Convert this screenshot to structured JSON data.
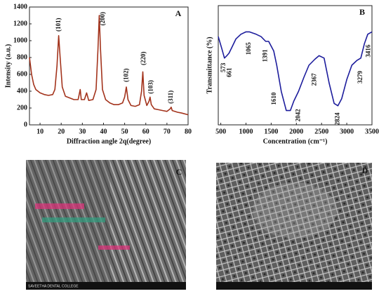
{
  "chart_data": [
    {
      "type": "line",
      "panel": "A",
      "xlabel": "Diffraction angle 2q(degree)",
      "ylabel": "Intensity (a.u.)",
      "color": "#a3331c",
      "xlim": [
        5,
        80
      ],
      "xticks": [
        10,
        20,
        30,
        40,
        50,
        60,
        70,
        80
      ],
      "ylim": [
        0,
        1400
      ],
      "yticks": [
        0,
        200,
        400,
        600,
        800,
        1000,
        1200,
        1400
      ],
      "x": [
        5,
        6,
        7,
        8,
        10,
        12,
        14,
        16,
        17,
        18,
        18.8,
        19.5,
        20.5,
        22,
        24,
        26,
        28,
        29,
        29.5,
        31,
        32,
        33,
        35,
        36.5,
        37.4,
        38,
        38.6,
        39.5,
        41,
        43,
        45,
        47,
        49,
        50,
        50.8,
        51.6,
        53,
        55,
        57,
        58,
        58.6,
        59.2,
        60.5,
        61.5,
        62,
        62.6,
        64,
        66,
        68,
        70,
        71.5,
        72,
        72.5,
        75,
        77,
        80
      ],
      "values": [
        800,
        600,
        480,
        420,
        380,
        360,
        350,
        360,
        420,
        700,
        1060,
        800,
        450,
        340,
        320,
        300,
        300,
        420,
        300,
        300,
        380,
        290,
        300,
        420,
        900,
        1300,
        900,
        420,
        300,
        260,
        240,
        240,
        260,
        330,
        450,
        300,
        230,
        220,
        240,
        400,
        630,
        350,
        230,
        280,
        330,
        240,
        190,
        180,
        170,
        160,
        190,
        210,
        170,
        150,
        140,
        120
      ],
      "annotations": [
        {
          "text": "(101)",
          "x": 19,
          "y": 1190
        },
        {
          "text": "(200)",
          "x": 39.8,
          "y": 1260
        },
        {
          "text": "(102)",
          "x": 51,
          "y": 590
        },
        {
          "text": "(220)",
          "x": 59,
          "y": 790
        },
        {
          "text": "(103)",
          "x": 62.5,
          "y": 450
        },
        {
          "text": "(311)",
          "x": 72,
          "y": 330
        }
      ]
    },
    {
      "type": "line",
      "panel": "B",
      "xlabel": "Concentration (cm⁻¹)",
      "ylabel": "Transmittance (%)",
      "color": "#1c1c9c",
      "xlim": [
        450,
        3500
      ],
      "xticks": [
        500,
        1000,
        1500,
        2000,
        2500,
        3000,
        3500
      ],
      "ylim": [
        0,
        100
      ],
      "x": [
        450,
        520,
        573,
        620,
        661,
        720,
        800,
        900,
        1000,
        1065,
        1200,
        1300,
        1391,
        1450,
        1550,
        1610,
        1700,
        1800,
        1880,
        1950,
        2042,
        2150,
        2250,
        2367,
        2450,
        2550,
        2650,
        2750,
        2824,
        2900,
        3000,
        3100,
        3200,
        3279,
        3350,
        3416,
        3500
      ],
      "values": [
        74,
        64,
        56,
        58,
        60,
        65,
        72,
        76,
        78,
        78,
        76,
        74,
        70,
        70,
        62,
        50,
        28,
        12,
        12,
        20,
        28,
        40,
        50,
        55,
        58,
        56,
        35,
        18,
        16,
        22,
        38,
        50,
        54,
        56,
        68,
        76,
        78
      ],
      "annotations": [
        {
          "text": "573",
          "x": 560,
          "y": 48
        },
        {
          "text": "661",
          "x": 680,
          "y": 44
        },
        {
          "text": "1065",
          "x": 1065,
          "y": 64
        },
        {
          "text": "1391",
          "x": 1391,
          "y": 58
        },
        {
          "text": "1610",
          "x": 1560,
          "y": 22
        },
        {
          "text": "2042",
          "x": 2042,
          "y": 8
        },
        {
          "text": "2367",
          "x": 2367,
          "y": 38
        },
        {
          "text": "2824",
          "x": 2824,
          "y": 5
        },
        {
          "text": "3279",
          "x": 3279,
          "y": 40
        },
        {
          "text": "3416",
          "x": 3440,
          "y": 62
        }
      ]
    }
  ],
  "panels": [
    {
      "label": "C",
      "footer": "SAVEETHA DENTAL COLLEGE"
    },
    {
      "label": "D"
    }
  ]
}
